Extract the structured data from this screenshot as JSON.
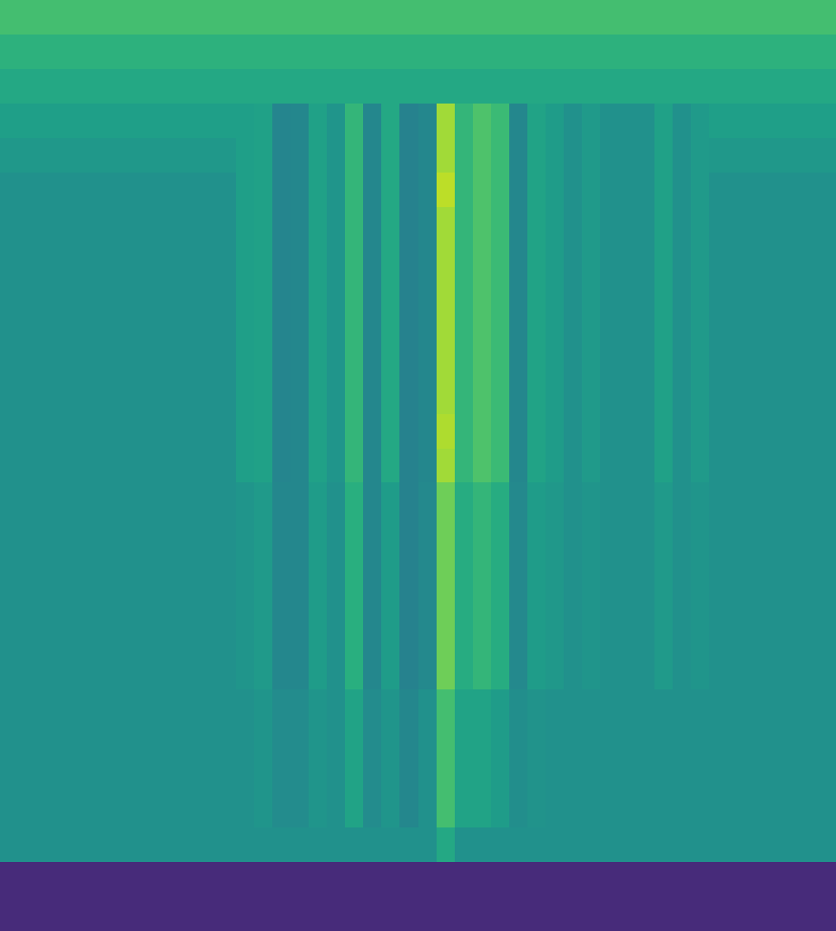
{
  "chart_data": {
    "type": "heatmap",
    "color": "Viridis",
    "zlim": [
      0,
      1
    ],
    "tick_labels": false,
    "grid": false,
    "cells": [
      [
        0.7,
        0.7,
        0.7,
        0.7,
        0.7,
        0.7,
        0.7,
        0.7,
        0.7,
        0.7,
        0.7,
        0.7,
        0.7,
        0.7,
        0.7,
        0.7,
        0.7,
        0.7,
        0.7,
        0.7,
        0.7,
        0.7,
        0.7,
        0.7,
        0.7,
        0.7,
        0.7,
        0.7,
        0.7,
        0.7,
        0.7,
        0.7,
        0.7,
        0.7,
        0.7,
        0.7,
        0.7,
        0.7,
        0.7,
        0.7,
        0.7,
        0.7,
        0.7,
        0.7,
        0.7,
        0.7
      ],
      [
        0.64,
        0.64,
        0.64,
        0.64,
        0.64,
        0.64,
        0.64,
        0.64,
        0.64,
        0.64,
        0.64,
        0.64,
        0.64,
        0.64,
        0.64,
        0.64,
        0.64,
        0.64,
        0.64,
        0.64,
        0.64,
        0.64,
        0.64,
        0.64,
        0.64,
        0.64,
        0.64,
        0.64,
        0.64,
        0.64,
        0.64,
        0.64,
        0.64,
        0.64,
        0.64,
        0.64,
        0.64,
        0.64,
        0.64,
        0.64,
        0.64,
        0.64,
        0.64,
        0.64,
        0.64,
        0.64
      ],
      [
        0.6,
        0.6,
        0.6,
        0.6,
        0.6,
        0.6,
        0.6,
        0.6,
        0.6,
        0.6,
        0.6,
        0.6,
        0.6,
        0.6,
        0.6,
        0.6,
        0.6,
        0.6,
        0.6,
        0.6,
        0.6,
        0.6,
        0.6,
        0.6,
        0.6,
        0.6,
        0.6,
        0.6,
        0.6,
        0.6,
        0.6,
        0.6,
        0.6,
        0.6,
        0.6,
        0.6,
        0.6,
        0.6,
        0.6,
        0.6,
        0.6,
        0.6,
        0.6,
        0.6,
        0.6,
        0.6
      ],
      [
        0.56,
        0.56,
        0.56,
        0.56,
        0.56,
        0.56,
        0.56,
        0.56,
        0.56,
        0.56,
        0.56,
        0.56,
        0.56,
        0.56,
        0.57,
        0.45,
        0.46,
        0.57,
        0.52,
        0.66,
        0.46,
        0.6,
        0.44,
        0.46,
        0.86,
        0.66,
        0.72,
        0.68,
        0.46,
        0.58,
        0.55,
        0.5,
        0.54,
        0.5,
        0.5,
        0.5,
        0.57,
        0.5,
        0.54,
        0.56,
        0.56,
        0.56,
        0.56,
        0.56,
        0.56,
        0.56
      ],
      [
        0.53,
        0.53,
        0.53,
        0.53,
        0.53,
        0.53,
        0.53,
        0.53,
        0.53,
        0.53,
        0.53,
        0.53,
        0.53,
        0.56,
        0.57,
        0.45,
        0.46,
        0.57,
        0.52,
        0.66,
        0.46,
        0.6,
        0.44,
        0.46,
        0.86,
        0.66,
        0.72,
        0.68,
        0.46,
        0.58,
        0.55,
        0.5,
        0.54,
        0.5,
        0.5,
        0.5,
        0.57,
        0.5,
        0.54,
        0.53,
        0.53,
        0.53,
        0.53,
        0.53,
        0.53,
        0.53
      ],
      [
        0.5,
        0.5,
        0.5,
        0.5,
        0.5,
        0.5,
        0.5,
        0.5,
        0.5,
        0.5,
        0.5,
        0.5,
        0.5,
        0.56,
        0.57,
        0.45,
        0.46,
        0.57,
        0.52,
        0.66,
        0.46,
        0.6,
        0.44,
        0.46,
        0.9,
        0.66,
        0.72,
        0.68,
        0.46,
        0.58,
        0.55,
        0.5,
        0.54,
        0.5,
        0.5,
        0.5,
        0.57,
        0.5,
        0.54,
        0.5,
        0.5,
        0.5,
        0.5,
        0.5,
        0.5,
        0.5
      ],
      [
        0.5,
        0.5,
        0.5,
        0.5,
        0.5,
        0.5,
        0.5,
        0.5,
        0.5,
        0.5,
        0.5,
        0.5,
        0.5,
        0.56,
        0.57,
        0.45,
        0.46,
        0.57,
        0.52,
        0.66,
        0.46,
        0.6,
        0.44,
        0.46,
        0.86,
        0.66,
        0.72,
        0.68,
        0.46,
        0.58,
        0.55,
        0.5,
        0.54,
        0.5,
        0.5,
        0.5,
        0.57,
        0.5,
        0.54,
        0.5,
        0.5,
        0.5,
        0.5,
        0.5,
        0.5,
        0.5
      ],
      [
        0.5,
        0.5,
        0.5,
        0.5,
        0.5,
        0.5,
        0.5,
        0.5,
        0.5,
        0.5,
        0.5,
        0.5,
        0.5,
        0.56,
        0.57,
        0.45,
        0.46,
        0.57,
        0.52,
        0.66,
        0.46,
        0.6,
        0.44,
        0.46,
        0.86,
        0.66,
        0.72,
        0.68,
        0.46,
        0.58,
        0.55,
        0.5,
        0.54,
        0.5,
        0.5,
        0.5,
        0.57,
        0.5,
        0.54,
        0.5,
        0.5,
        0.5,
        0.5,
        0.5,
        0.5,
        0.5
      ],
      [
        0.5,
        0.5,
        0.5,
        0.5,
        0.5,
        0.5,
        0.5,
        0.5,
        0.5,
        0.5,
        0.5,
        0.5,
        0.5,
        0.56,
        0.57,
        0.45,
        0.46,
        0.57,
        0.52,
        0.66,
        0.46,
        0.6,
        0.44,
        0.46,
        0.86,
        0.66,
        0.72,
        0.68,
        0.46,
        0.58,
        0.55,
        0.5,
        0.54,
        0.5,
        0.5,
        0.5,
        0.57,
        0.5,
        0.54,
        0.5,
        0.5,
        0.5,
        0.5,
        0.5,
        0.5,
        0.5
      ],
      [
        0.5,
        0.5,
        0.5,
        0.5,
        0.5,
        0.5,
        0.5,
        0.5,
        0.5,
        0.5,
        0.5,
        0.5,
        0.5,
        0.56,
        0.57,
        0.45,
        0.46,
        0.57,
        0.52,
        0.66,
        0.46,
        0.6,
        0.44,
        0.46,
        0.86,
        0.66,
        0.72,
        0.68,
        0.46,
        0.58,
        0.55,
        0.5,
        0.54,
        0.5,
        0.5,
        0.5,
        0.57,
        0.5,
        0.54,
        0.5,
        0.5,
        0.5,
        0.5,
        0.5,
        0.5,
        0.5
      ],
      [
        0.5,
        0.5,
        0.5,
        0.5,
        0.5,
        0.5,
        0.5,
        0.5,
        0.5,
        0.5,
        0.5,
        0.5,
        0.5,
        0.56,
        0.57,
        0.45,
        0.46,
        0.57,
        0.52,
        0.66,
        0.46,
        0.6,
        0.44,
        0.46,
        0.86,
        0.66,
        0.72,
        0.68,
        0.46,
        0.58,
        0.55,
        0.5,
        0.54,
        0.5,
        0.5,
        0.5,
        0.57,
        0.5,
        0.54,
        0.5,
        0.5,
        0.5,
        0.5,
        0.5,
        0.5,
        0.5
      ],
      [
        0.5,
        0.5,
        0.5,
        0.5,
        0.5,
        0.5,
        0.5,
        0.5,
        0.5,
        0.5,
        0.5,
        0.5,
        0.5,
        0.56,
        0.57,
        0.45,
        0.46,
        0.57,
        0.52,
        0.66,
        0.46,
        0.6,
        0.44,
        0.46,
        0.86,
        0.66,
        0.72,
        0.68,
        0.46,
        0.58,
        0.55,
        0.5,
        0.54,
        0.5,
        0.5,
        0.5,
        0.57,
        0.5,
        0.54,
        0.5,
        0.5,
        0.5,
        0.5,
        0.5,
        0.5,
        0.5
      ],
      [
        0.5,
        0.5,
        0.5,
        0.5,
        0.5,
        0.5,
        0.5,
        0.5,
        0.5,
        0.5,
        0.5,
        0.5,
        0.5,
        0.56,
        0.57,
        0.45,
        0.46,
        0.57,
        0.52,
        0.66,
        0.46,
        0.6,
        0.44,
        0.46,
        0.88,
        0.66,
        0.72,
        0.68,
        0.46,
        0.58,
        0.55,
        0.5,
        0.54,
        0.5,
        0.5,
        0.5,
        0.57,
        0.5,
        0.54,
        0.5,
        0.5,
        0.5,
        0.5,
        0.5,
        0.5,
        0.5
      ],
      [
        0.5,
        0.5,
        0.5,
        0.5,
        0.5,
        0.5,
        0.5,
        0.5,
        0.5,
        0.5,
        0.5,
        0.5,
        0.5,
        0.56,
        0.57,
        0.45,
        0.46,
        0.57,
        0.52,
        0.66,
        0.46,
        0.6,
        0.44,
        0.46,
        0.86,
        0.66,
        0.72,
        0.68,
        0.46,
        0.58,
        0.55,
        0.5,
        0.54,
        0.5,
        0.5,
        0.5,
        0.57,
        0.5,
        0.54,
        0.5,
        0.5,
        0.5,
        0.5,
        0.5,
        0.5,
        0.5
      ],
      [
        0.5,
        0.5,
        0.5,
        0.5,
        0.5,
        0.5,
        0.5,
        0.5,
        0.5,
        0.5,
        0.5,
        0.5,
        0.5,
        0.52,
        0.54,
        0.46,
        0.46,
        0.55,
        0.5,
        0.63,
        0.46,
        0.55,
        0.44,
        0.47,
        0.78,
        0.62,
        0.66,
        0.62,
        0.47,
        0.55,
        0.53,
        0.5,
        0.52,
        0.5,
        0.5,
        0.5,
        0.54,
        0.5,
        0.52,
        0.5,
        0.5,
        0.5,
        0.5,
        0.5,
        0.5,
        0.5
      ],
      [
        0.5,
        0.5,
        0.5,
        0.5,
        0.5,
        0.5,
        0.5,
        0.5,
        0.5,
        0.5,
        0.5,
        0.5,
        0.5,
        0.52,
        0.54,
        0.46,
        0.46,
        0.55,
        0.5,
        0.63,
        0.46,
        0.55,
        0.44,
        0.47,
        0.78,
        0.62,
        0.66,
        0.62,
        0.47,
        0.55,
        0.53,
        0.5,
        0.52,
        0.5,
        0.5,
        0.5,
        0.54,
        0.5,
        0.52,
        0.5,
        0.5,
        0.5,
        0.5,
        0.5,
        0.5,
        0.5
      ],
      [
        0.5,
        0.5,
        0.5,
        0.5,
        0.5,
        0.5,
        0.5,
        0.5,
        0.5,
        0.5,
        0.5,
        0.5,
        0.5,
        0.52,
        0.54,
        0.46,
        0.46,
        0.55,
        0.5,
        0.63,
        0.46,
        0.55,
        0.44,
        0.47,
        0.78,
        0.62,
        0.66,
        0.62,
        0.47,
        0.55,
        0.53,
        0.5,
        0.52,
        0.5,
        0.5,
        0.5,
        0.54,
        0.5,
        0.52,
        0.5,
        0.5,
        0.5,
        0.5,
        0.5,
        0.5,
        0.5
      ],
      [
        0.5,
        0.5,
        0.5,
        0.5,
        0.5,
        0.5,
        0.5,
        0.5,
        0.5,
        0.5,
        0.5,
        0.5,
        0.5,
        0.52,
        0.54,
        0.46,
        0.46,
        0.55,
        0.5,
        0.63,
        0.46,
        0.55,
        0.44,
        0.47,
        0.78,
        0.62,
        0.66,
        0.62,
        0.47,
        0.55,
        0.53,
        0.5,
        0.52,
        0.5,
        0.5,
        0.5,
        0.54,
        0.5,
        0.52,
        0.5,
        0.5,
        0.5,
        0.5,
        0.5,
        0.5,
        0.5
      ],
      [
        0.5,
        0.5,
        0.5,
        0.5,
        0.5,
        0.5,
        0.5,
        0.5,
        0.5,
        0.5,
        0.5,
        0.5,
        0.5,
        0.52,
        0.54,
        0.46,
        0.46,
        0.55,
        0.5,
        0.63,
        0.46,
        0.55,
        0.44,
        0.47,
        0.78,
        0.62,
        0.66,
        0.62,
        0.47,
        0.55,
        0.53,
        0.5,
        0.52,
        0.5,
        0.5,
        0.5,
        0.54,
        0.5,
        0.52,
        0.5,
        0.5,
        0.5,
        0.5,
        0.5,
        0.5,
        0.5
      ],
      [
        0.5,
        0.5,
        0.5,
        0.5,
        0.5,
        0.5,
        0.5,
        0.5,
        0.5,
        0.5,
        0.5,
        0.5,
        0.5,
        0.52,
        0.54,
        0.46,
        0.46,
        0.55,
        0.5,
        0.63,
        0.46,
        0.55,
        0.44,
        0.47,
        0.78,
        0.62,
        0.66,
        0.62,
        0.47,
        0.55,
        0.53,
        0.5,
        0.52,
        0.5,
        0.5,
        0.5,
        0.54,
        0.5,
        0.52,
        0.5,
        0.5,
        0.5,
        0.5,
        0.5,
        0.5,
        0.5
      ],
      [
        0.5,
        0.5,
        0.5,
        0.5,
        0.5,
        0.5,
        0.5,
        0.5,
        0.5,
        0.5,
        0.5,
        0.5,
        0.5,
        0.5,
        0.52,
        0.48,
        0.48,
        0.52,
        0.5,
        0.58,
        0.48,
        0.52,
        0.46,
        0.5,
        0.7,
        0.58,
        0.58,
        0.55,
        0.49,
        0.51,
        0.5,
        0.5,
        0.5,
        0.5,
        0.5,
        0.5,
        0.5,
        0.5,
        0.5,
        0.5,
        0.5,
        0.5,
        0.5,
        0.5,
        0.5,
        0.5
      ],
      [
        0.5,
        0.5,
        0.5,
        0.5,
        0.5,
        0.5,
        0.5,
        0.5,
        0.5,
        0.5,
        0.5,
        0.5,
        0.5,
        0.5,
        0.52,
        0.48,
        0.48,
        0.52,
        0.5,
        0.58,
        0.48,
        0.52,
        0.46,
        0.5,
        0.7,
        0.58,
        0.58,
        0.55,
        0.49,
        0.51,
        0.5,
        0.5,
        0.5,
        0.5,
        0.5,
        0.5,
        0.5,
        0.5,
        0.5,
        0.5,
        0.5,
        0.5,
        0.5,
        0.5,
        0.5,
        0.5
      ],
      [
        0.5,
        0.5,
        0.5,
        0.5,
        0.5,
        0.5,
        0.5,
        0.5,
        0.5,
        0.5,
        0.5,
        0.5,
        0.5,
        0.5,
        0.52,
        0.48,
        0.48,
        0.52,
        0.5,
        0.58,
        0.48,
        0.52,
        0.46,
        0.5,
        0.7,
        0.58,
        0.58,
        0.55,
        0.49,
        0.51,
        0.5,
        0.5,
        0.5,
        0.5,
        0.5,
        0.5,
        0.5,
        0.5,
        0.5,
        0.5,
        0.5,
        0.5,
        0.5,
        0.5,
        0.5,
        0.5
      ],
      [
        0.5,
        0.5,
        0.5,
        0.5,
        0.5,
        0.5,
        0.5,
        0.5,
        0.5,
        0.5,
        0.5,
        0.5,
        0.5,
        0.5,
        0.52,
        0.48,
        0.48,
        0.52,
        0.5,
        0.58,
        0.48,
        0.52,
        0.46,
        0.5,
        0.7,
        0.58,
        0.58,
        0.55,
        0.49,
        0.51,
        0.5,
        0.5,
        0.5,
        0.5,
        0.5,
        0.5,
        0.5,
        0.5,
        0.5,
        0.5,
        0.5,
        0.5,
        0.5,
        0.5,
        0.5,
        0.5
      ],
      [
        0.5,
        0.5,
        0.5,
        0.5,
        0.5,
        0.5,
        0.5,
        0.5,
        0.5,
        0.5,
        0.5,
        0.5,
        0.5,
        0.5,
        0.5,
        0.5,
        0.5,
        0.5,
        0.5,
        0.5,
        0.5,
        0.5,
        0.5,
        0.5,
        0.6,
        0.5,
        0.5,
        0.5,
        0.5,
        0.5,
        0.5,
        0.5,
        0.5,
        0.5,
        0.5,
        0.5,
        0.5,
        0.5,
        0.5,
        0.5,
        0.5,
        0.5,
        0.5,
        0.5,
        0.5,
        0.5
      ],
      [
        0.12,
        0.12,
        0.12,
        0.12,
        0.12,
        0.12,
        0.12,
        0.12,
        0.12,
        0.12,
        0.12,
        0.12,
        0.12,
        0.12,
        0.12,
        0.12,
        0.12,
        0.12,
        0.12,
        0.12,
        0.12,
        0.12,
        0.12,
        0.12,
        0.12,
        0.12,
        0.12,
        0.12,
        0.12,
        0.12,
        0.12,
        0.12,
        0.12,
        0.12,
        0.12,
        0.12,
        0.12,
        0.12,
        0.12,
        0.12,
        0.12,
        0.12,
        0.12,
        0.12,
        0.12,
        0.12
      ],
      [
        0.12,
        0.12,
        0.12,
        0.12,
        0.12,
        0.12,
        0.12,
        0.12,
        0.12,
        0.12,
        0.12,
        0.12,
        0.12,
        0.12,
        0.12,
        0.12,
        0.12,
        0.12,
        0.12,
        0.12,
        0.12,
        0.12,
        0.12,
        0.12,
        0.12,
        0.12,
        0.12,
        0.12,
        0.12,
        0.12,
        0.12,
        0.12,
        0.12,
        0.12,
        0.12,
        0.12,
        0.12,
        0.12,
        0.12,
        0.12,
        0.12,
        0.12,
        0.12,
        0.12,
        0.12,
        0.12
      ]
    ]
  }
}
